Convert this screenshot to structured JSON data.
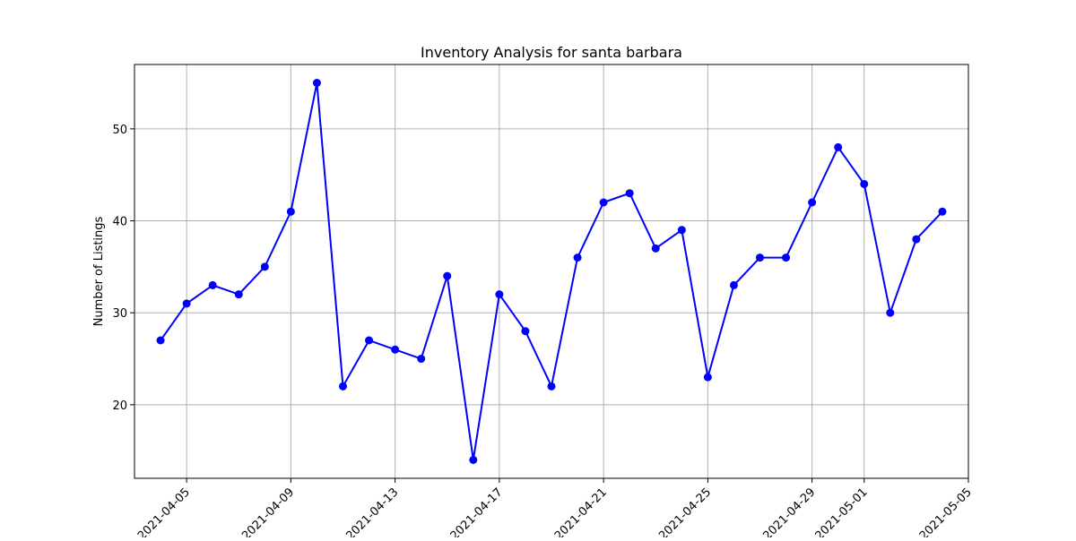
{
  "chart_data": {
    "type": "line",
    "title": "Inventory Analysis for santa barbara",
    "xlabel": "",
    "ylabel": "Number of Listings",
    "x": [
      "2021-04-04",
      "2021-04-05",
      "2021-04-06",
      "2021-04-07",
      "2021-04-08",
      "2021-04-09",
      "2021-04-10",
      "2021-04-11",
      "2021-04-12",
      "2021-04-13",
      "2021-04-14",
      "2021-04-15",
      "2021-04-16",
      "2021-04-17",
      "2021-04-18",
      "2021-04-19",
      "2021-04-20",
      "2021-04-21",
      "2021-04-22",
      "2021-04-23",
      "2021-04-24",
      "2021-04-25",
      "2021-04-26",
      "2021-04-27",
      "2021-04-28",
      "2021-04-29",
      "2021-04-30",
      "2021-05-01",
      "2021-05-02",
      "2021-05-03",
      "2021-05-04"
    ],
    "series": [
      {
        "values": [
          27,
          31,
          33,
          32,
          35,
          41,
          55,
          22,
          27,
          26,
          25,
          34,
          14,
          32,
          28,
          22,
          36,
          42,
          43,
          37,
          39,
          23,
          33,
          36,
          36,
          42,
          48,
          44,
          30,
          38,
          41
        ]
      }
    ],
    "xlim": [
      "2021-04-03",
      "2021-05-05"
    ],
    "ylim": [
      12,
      57
    ],
    "xticks": [
      "2021-04-05",
      "2021-04-09",
      "2021-04-13",
      "2021-04-17",
      "2021-04-21",
      "2021-04-25",
      "2021-04-29",
      "2021-05-01",
      "2021-05-05"
    ],
    "yticks": [
      20,
      30,
      40,
      50
    ],
    "grid": true,
    "line_color": "#0000ff",
    "marker": "circle"
  }
}
